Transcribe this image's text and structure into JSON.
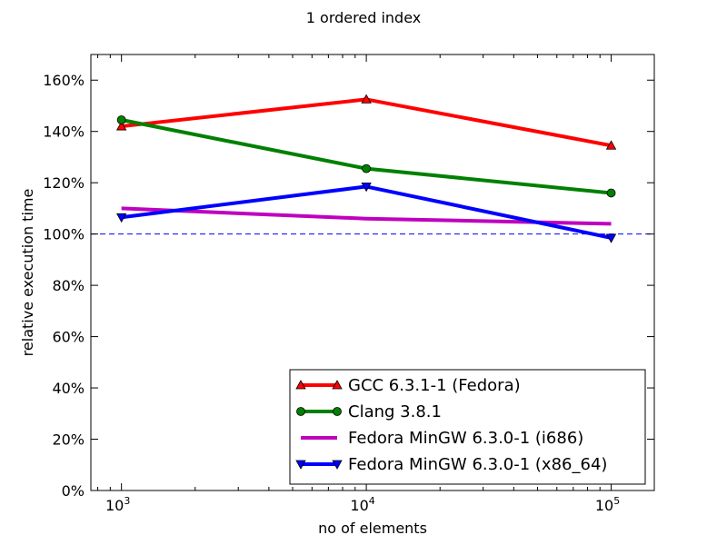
{
  "chart_data": {
    "type": "line",
    "title": "1 ordered index",
    "xlabel": "no of elements",
    "ylabel": "relative execution time",
    "x_scale": "log",
    "xlim": [
      750,
      150000
    ],
    "ylim": [
      0,
      170
    ],
    "x": [
      1000,
      10000,
      100000
    ],
    "x_tick_labels": [
      {
        "value": 1000,
        "base": "10",
        "exp": "3"
      },
      {
        "value": 10000,
        "base": "10",
        "exp": "4"
      },
      {
        "value": 100000,
        "base": "10",
        "exp": "5"
      }
    ],
    "y_ticks": [
      0,
      20,
      40,
      60,
      80,
      100,
      120,
      140,
      160
    ],
    "y_tick_labels": [
      "0%",
      "20%",
      "40%",
      "60%",
      "80%",
      "100%",
      "120%",
      "140%",
      "160%"
    ],
    "reference_line": {
      "y": 100,
      "color": "#0000ff",
      "style": "dashed"
    },
    "legend_position": "lower-right",
    "series": [
      {
        "name": "GCC 6.3.1-1 (Fedora)",
        "values": [
          142,
          152.5,
          134.5
        ],
        "color": "#ff0000",
        "marker": "triangle-up"
      },
      {
        "name": "Clang 3.8.1",
        "values": [
          144.5,
          125.5,
          116
        ],
        "color": "#008000",
        "marker": "circle"
      },
      {
        "name": "Fedora MinGW 6.3.0-1 (i686)",
        "values": [
          110,
          106,
          104
        ],
        "color": "#bf00bf",
        "marker": "none"
      },
      {
        "name": "Fedora MinGW 6.3.0-1 (x86_64)",
        "values": [
          106.5,
          118.5,
          98.5
        ],
        "color": "#0000ff",
        "marker": "triangle-down"
      }
    ]
  }
}
